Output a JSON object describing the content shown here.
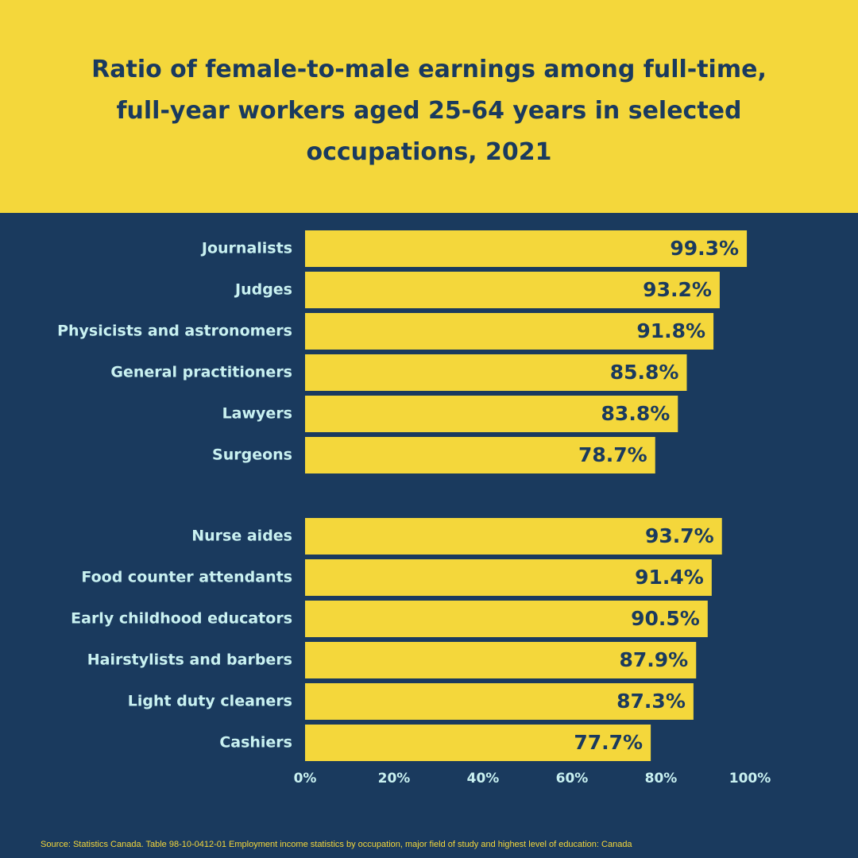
{
  "colors": {
    "background": "#1a3a5e",
    "accent": "#f4d73b",
    "label_text": "#c9f1f1",
    "value_text": "#1a3a5e"
  },
  "chart_data": {
    "type": "bar",
    "orientation": "horizontal",
    "title": "Ratio of female-to-male earnings among full-time,\nfull-year workers aged 25-64 years in selected\noccupations, 2021",
    "groups": [
      {
        "categories": [
          "Journalists",
          "Judges",
          "Physicists and astronomers",
          "General practitioners",
          "Lawyers",
          "Surgeons"
        ],
        "values": [
          99.3,
          93.2,
          91.8,
          85.8,
          83.8,
          78.7
        ],
        "value_labels": [
          "99.3%",
          "93.2%",
          "91.8%",
          "85.8%",
          "83.8%",
          "78.7%"
        ]
      },
      {
        "categories": [
          "Nurse aides",
          "Food counter attendants",
          "Early childhood educators",
          "Hairstylists and barbers",
          "Light duty cleaners",
          "Cashiers"
        ],
        "values": [
          93.7,
          91.4,
          90.5,
          87.9,
          87.3,
          77.7
        ],
        "value_labels": [
          "93.7%",
          "91.4%",
          "90.5%",
          "87.9%",
          "87.3%",
          "77.7%"
        ]
      }
    ],
    "xlim": [
      0,
      100
    ],
    "x_ticks": [
      0,
      20,
      40,
      60,
      80,
      100
    ],
    "x_tick_labels": [
      "0%",
      "20%",
      "40%",
      "60%",
      "80%",
      "100%"
    ],
    "xlabel": "",
    "ylabel": "",
    "grid": false,
    "legend": "none"
  },
  "source": "Source: Statistics Canada. Table 98-10-0412-01 Employment income statistics by occupation, major field of study and highest level of education: Canada"
}
